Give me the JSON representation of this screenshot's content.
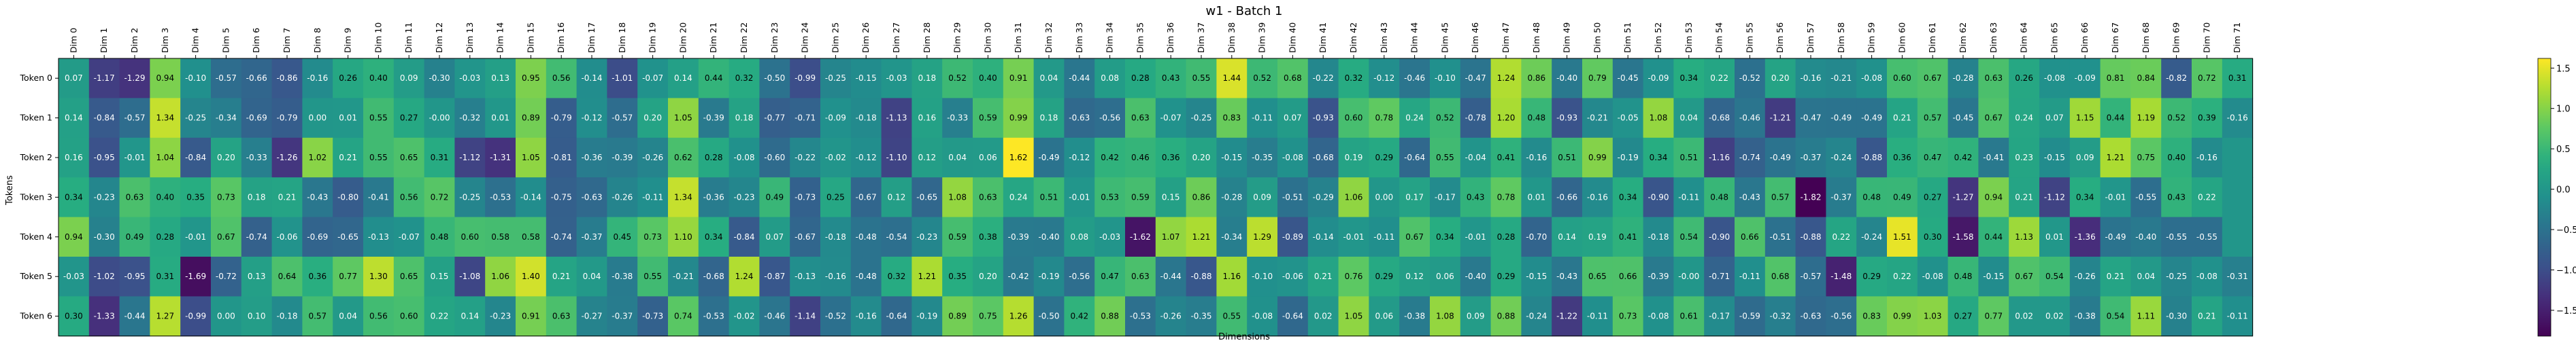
{
  "chart_data": {
    "type": "heatmap",
    "title": "w1 - Batch 1",
    "xlabel": "Dimensions",
    "ylabel": "Tokens",
    "rows": [
      "Token 0",
      "Token 1",
      "Token 2",
      "Token 3",
      "Token 4",
      "Token 5",
      "Token 6"
    ],
    "columns": [
      "Dim 0",
      "Dim 1",
      "Dim 2",
      "Dim 3",
      "Dim 4",
      "Dim 5",
      "Dim 6",
      "Dim 7",
      "Dim 8",
      "Dim 9",
      "Dim 10",
      "Dim 11",
      "Dim 12",
      "Dim 13",
      "Dim 14",
      "Dim 15",
      "Dim 16",
      "Dim 17",
      "Dim 18",
      "Dim 19",
      "Dim 20",
      "Dim 21",
      "Dim 22",
      "Dim 23",
      "Dim 24",
      "Dim 25",
      "Dim 26",
      "Dim 27",
      "Dim 28",
      "Dim 29",
      "Dim 30",
      "Dim 31",
      "Dim 32",
      "Dim 33",
      "Dim 34",
      "Dim 35",
      "Dim 36",
      "Dim 37",
      "Dim 38",
      "Dim 39",
      "Dim 40",
      "Dim 41",
      "Dim 42",
      "Dim 43",
      "Dim 44",
      "Dim 45",
      "Dim 46",
      "Dim 47",
      "Dim 48",
      "Dim 49",
      "Dim 50",
      "Dim 51",
      "Dim 52",
      "Dim 53",
      "Dim 54",
      "Dim 55",
      "Dim 56",
      "Dim 57",
      "Dim 58",
      "Dim 59",
      "Dim 60",
      "Dim 61",
      "Dim 62",
      "Dim 63",
      "Dim 64",
      "Dim 65",
      "Dim 66",
      "Dim 67",
      "Dim 68",
      "Dim 69",
      "Dim 70",
      "Dim 71"
    ],
    "values": [
      [
        0.07,
        -1.17,
        -1.29,
        0.94,
        -0.1,
        -0.57,
        -0.66,
        -0.86,
        -0.16,
        0.26,
        0.4,
        0.09,
        -0.3,
        -0.03,
        0.13,
        0.95,
        0.56,
        -0.14,
        -1.01,
        -0.07,
        0.14,
        0.44,
        0.32,
        -0.5,
        -0.99,
        -0.25,
        -0.15,
        -0.03,
        0.18,
        0.52,
        0.4,
        0.91,
        0.04,
        -0.44,
        0.08,
        0.28,
        0.43,
        0.55,
        1.44,
        0.52,
        0.68,
        -0.22,
        0.32,
        -0.12,
        -0.46,
        -0.1,
        -0.47,
        1.24,
        0.86,
        -0.4,
        0.79,
        -0.45,
        -0.09,
        0.34,
        0.22,
        -0.52,
        0.2,
        -0.16,
        -0.21,
        -0.08,
        0.6,
        0.67,
        -0.28,
        0.63,
        0.26,
        -0.08,
        -0.09,
        0.81,
        0.84,
        -0.82,
        0.72,
        0.31
      ],
      [
        0.14,
        -0.84,
        -0.57,
        1.34,
        -0.25,
        -0.34,
        -0.69,
        -0.79,
        0.0,
        0.01,
        0.55,
        0.27,
        -0.0,
        -0.32,
        0.01,
        0.89,
        -0.79,
        -0.12,
        -0.57,
        0.2,
        1.05,
        -0.39,
        0.18,
        -0.77,
        -0.71,
        -0.09,
        -0.18,
        -1.13,
        0.16,
        -0.33,
        0.59,
        0.99,
        0.18,
        -0.63,
        -0.56,
        0.63,
        -0.07,
        -0.25,
        0.83,
        -0.11,
        0.07,
        -0.93,
        0.6,
        0.78,
        0.24,
        0.52,
        -0.78,
        1.2,
        0.48,
        -0.93,
        -0.21,
        -0.05,
        1.08,
        0.04,
        -0.68,
        -0.46,
        -1.21,
        -0.47,
        -0.49,
        -0.49,
        0.21,
        0.57,
        -0.45,
        0.67,
        0.24,
        0.07,
        1.15,
        0.44,
        1.19,
        0.52,
        0.39,
        -0.16
      ],
      [
        0.16,
        -0.95,
        -0.01,
        1.04,
        -0.84,
        0.2,
        -0.33,
        -1.26,
        1.02,
        0.21,
        0.55,
        0.65,
        0.31,
        -1.12,
        -1.31,
        1.05,
        -0.81,
        -0.36,
        -0.39,
        -0.26,
        0.62,
        0.28,
        -0.08,
        -0.6,
        -0.22,
        -0.02,
        -0.12,
        -1.1,
        0.12,
        0.04,
        0.06,
        1.62,
        -0.49,
        -0.12,
        0.42,
        0.46,
        0.36,
        0.2,
        -0.15,
        -0.35,
        -0.08,
        -0.68,
        0.19,
        0.29,
        -0.64,
        0.55,
        -0.04,
        0.41,
        -0.16,
        0.51,
        0.99,
        -0.19,
        0.34,
        0.51,
        -1.16,
        -0.74,
        -0.49,
        -0.37,
        -0.24,
        -0.88,
        0.36,
        0.47,
        0.42,
        -0.41,
        0.23,
        -0.15,
        0.09,
        1.21,
        0.75,
        0.4,
        -0.16,
        0.0
      ],
      [
        0.34,
        -0.23,
        0.63,
        0.4,
        0.35,
        0.73,
        0.18,
        0.21,
        -0.43,
        -0.8,
        -0.41,
        0.56,
        0.72,
        -0.25,
        -0.53,
        -0.14,
        -0.75,
        -0.63,
        -0.26,
        -0.11,
        1.34,
        -0.36,
        -0.23,
        0.49,
        -0.73,
        0.25,
        -0.67,
        0.12,
        -0.65,
        1.08,
        0.63,
        0.24,
        0.51,
        -0.01,
        0.53,
        0.59,
        0.15,
        0.86,
        -0.28,
        0.09,
        -0.51,
        -0.29,
        1.06,
        0.0,
        0.17,
        -0.17,
        0.43,
        0.78,
        0.01,
        -0.66,
        -0.16,
        0.34,
        -0.9,
        -0.11,
        0.48,
        -0.43,
        0.57,
        -1.82,
        -0.37,
        0.48,
        0.49,
        0.27,
        -1.27,
        0.94,
        0.21,
        -1.12,
        0.34,
        -0.01,
        -0.55,
        0.43,
        0.22,
        0.0
      ],
      [
        0.94,
        -0.3,
        0.49,
        0.28,
        -0.01,
        0.67,
        -0.74,
        -0.06,
        -0.69,
        -0.65,
        -0.13,
        -0.07,
        0.48,
        0.6,
        0.58,
        0.58,
        -0.74,
        -0.37,
        0.45,
        0.73,
        1.1,
        0.34,
        -0.84,
        0.07,
        -0.67,
        -0.18,
        -0.48,
        -0.54,
        -0.23,
        0.59,
        0.38,
        -0.39,
        -0.4,
        0.08,
        -0.03,
        -1.62,
        1.07,
        1.21,
        -0.34,
        1.29,
        -0.89,
        -0.14,
        -0.01,
        -0.11,
        0.67,
        0.34,
        -0.01,
        0.28,
        -0.7,
        0.14,
        0.19,
        0.41,
        -0.18,
        0.54,
        -0.9,
        0.66,
        -0.51,
        -0.88,
        0.22,
        -0.24,
        1.51,
        0.3,
        -1.58,
        0.44,
        1.13,
        0.01,
        -1.36,
        -0.49,
        -0.4,
        -0.55,
        -0.55,
        0.0
      ],
      [
        -0.03,
        -1.02,
        -0.95,
        0.31,
        -1.69,
        -0.72,
        0.13,
        0.64,
        0.36,
        0.77,
        1.3,
        0.65,
        0.15,
        -1.08,
        1.06,
        1.4,
        0.21,
        0.04,
        -0.38,
        0.55,
        -0.21,
        -0.68,
        1.24,
        -0.87,
        -0.13,
        -0.16,
        -0.48,
        0.32,
        1.21,
        0.35,
        0.2,
        -0.42,
        -0.19,
        -0.56,
        0.47,
        0.63,
        -0.44,
        -0.88,
        1.16,
        -0.1,
        -0.06,
        0.21,
        0.76,
        0.29,
        0.12,
        0.06,
        -0.4,
        0.29,
        -0.15,
        -0.43,
        0.65,
        0.66,
        -0.39,
        -0.0,
        -0.71,
        -0.11,
        0.68,
        -0.57,
        -1.48,
        0.29,
        0.22,
        -0.08,
        0.48,
        -0.15,
        0.67,
        0.54,
        -0.26,
        0.21,
        0.04,
        -0.25,
        -0.08,
        -0.31
      ],
      [
        0.3,
        -1.33,
        -0.44,
        1.27,
        -0.99,
        0.0,
        0.1,
        -0.18,
        0.57,
        0.04,
        0.56,
        0.6,
        0.22,
        0.14,
        -0.23,
        0.91,
        0.63,
        -0.27,
        -0.37,
        -0.73,
        0.74,
        -0.53,
        -0.02,
        -0.46,
        -1.14,
        -0.52,
        -0.16,
        -0.64,
        -0.19,
        0.89,
        0.75,
        1.26,
        -0.5,
        0.42,
        0.88,
        -0.53,
        -0.26,
        -0.35,
        0.55,
        -0.08,
        -0.64,
        0.02,
        1.05,
        0.06,
        -0.38,
        1.08,
        0.09,
        0.88,
        -0.24,
        -1.22,
        -0.11,
        0.73,
        -0.08,
        0.61,
        -0.17,
        -0.59,
        -0.32,
        -0.63,
        -0.56,
        0.83,
        0.99,
        1.03,
        0.27,
        0.77,
        0.02,
        0.02,
        -0.38,
        0.54,
        1.11,
        -0.3,
        0.21,
        -0.11
      ]
    ],
    "cell_labels": [
      [
        "0.07",
        "-1.17",
        "-1.29",
        "0.94",
        "-0.10",
        "-0.57",
        "-0.66",
        "-0.86",
        "-0.16",
        "0.26",
        "0.40",
        "0.09",
        "-0.30",
        "-0.03",
        "0.13",
        "0.95",
        "0.56",
        "-0.14",
        "-1.01",
        "-0.07",
        "0.14",
        "0.44",
        "0.32",
        "-0.50",
        "-0.99",
        "-0.25",
        "-0.15",
        "-0.03",
        "0.18",
        "0.52",
        "0.40",
        "0.91",
        "0.04",
        "-0.44",
        "0.08",
        "0.28",
        "0.43",
        "0.55",
        "1.44",
        "0.52",
        "0.68",
        "-0.22",
        "0.32",
        "-0.12",
        "-0.46",
        "-0.10",
        "-0.47",
        "1.24",
        "0.86",
        "-0.40",
        "0.79",
        "-0.45",
        "-0.09",
        "0.34",
        "0.22",
        "-0.52",
        "0.20",
        "-0.16",
        "-0.21",
        "-0.08",
        "0.60",
        "0.67",
        "-0.28",
        "0.63",
        "0.26",
        "-0.08",
        "-0.09",
        "0.81",
        "0.84",
        "-0.82",
        "0.72",
        "0.31"
      ],
      [
        "0.14",
        "-0.84",
        "-0.57",
        "1.34",
        "-0.25",
        "-0.34",
        "-0.69",
        "-0.79",
        "0.00",
        "0.01",
        "0.55",
        "0.27",
        "-0.00",
        "-0.32",
        "0.01",
        "0.89",
        "-0.79",
        "-0.12",
        "-0.57",
        "0.20",
        "1.05",
        "-0.39",
        "0.18",
        "-0.77",
        "-0.71",
        "-0.09",
        "-0.18",
        "-1.13",
        "0.16",
        "-0.33",
        "0.59",
        "0.99",
        "0.18",
        "-0.63",
        "-0.56",
        "0.63",
        "-0.07",
        "-0.25",
        "0.83",
        "-0.11",
        "0.07",
        "-0.93",
        "0.60",
        "0.78",
        "0.24",
        "0.52",
        "-0.78",
        "1.20",
        "0.48",
        "-0.93",
        "-0.21",
        "-0.05",
        "1.08",
        "0.04",
        "-0.68",
        "-0.46",
        "-1.21",
        "-0.47",
        "-0.49",
        "-0.49",
        "0.21",
        "0.57",
        "-0.45",
        "0.67",
        "0.24",
        "0.07",
        "1.15",
        "0.44",
        "1.19",
        "0.52",
        "0.39",
        "-0.16"
      ],
      [
        "0.16",
        "-0.95",
        "-0.01",
        "1.04",
        "-0.84",
        "0.20",
        "-0.33",
        "-1.26",
        "1.02",
        "0.21",
        "0.55",
        "0.65",
        "0.31",
        "-1.12",
        "-1.31",
        "1.05",
        "-0.81",
        "-0.36",
        "-0.39",
        "-0.26",
        "0.62",
        "0.28",
        "-0.08",
        "-0.60",
        "-0.22",
        "-0.02",
        "-0.12",
        "-1.10",
        "0.12",
        "0.04",
        "0.06",
        "1.62",
        "-0.49",
        "-0.12",
        "0.42",
        "0.46",
        "0.36",
        "0.20",
        "-0.15",
        "-0.35",
        "-0.08",
        "-0.68",
        "0.19",
        "0.29",
        "-0.64",
        "0.55",
        "-0.04",
        "0.41",
        "-0.16",
        "0.51",
        "0.99",
        "-0.19",
        "0.34",
        "0.51",
        "-1.16",
        "-0.74",
        "-0.49",
        "-0.37",
        "-0.24",
        "-0.88",
        "0.36",
        "0.47",
        "0.42",
        "-0.41",
        "0.23",
        "-0.15",
        "0.09",
        "1.21",
        "0.75",
        "0.40",
        "-0.16",
        ""
      ],
      [
        "0.34",
        "-0.23",
        "0.63",
        "0.40",
        "0.35",
        "0.73",
        "0.18",
        "0.21",
        "-0.43",
        "-0.80",
        "-0.41",
        "0.56",
        "0.72",
        "-0.25",
        "-0.53",
        "-0.14",
        "-0.75",
        "-0.63",
        "-0.26",
        "-0.11",
        "1.34",
        "-0.36",
        "-0.23",
        "0.49",
        "-0.73",
        "0.25",
        "-0.67",
        "0.12",
        "-0.65",
        "1.08",
        "0.63",
        "0.24",
        "0.51",
        "-0.01",
        "0.53",
        "0.59",
        "0.15",
        "0.86",
        "-0.28",
        "0.09",
        "-0.51",
        "-0.29",
        "1.06",
        "0.00",
        "0.17",
        "-0.17",
        "0.43",
        "0.78",
        "0.01",
        "-0.66",
        "-0.16",
        "0.34",
        "-0.90",
        "-0.11",
        "0.48",
        "-0.43",
        "0.57",
        "-1.82",
        "-0.37",
        "0.48",
        "0.49",
        "0.27",
        "-1.27",
        "0.94",
        "0.21",
        "-1.12",
        "0.34",
        "-0.01",
        "-0.55",
        "0.43",
        "0.22",
        ""
      ],
      [
        "0.94",
        "-0.30",
        "0.49",
        "0.28",
        "-0.01",
        "0.67",
        "-0.74",
        "-0.06",
        "-0.69",
        "-0.65",
        "-0.13",
        "-0.07",
        "0.48",
        "0.60",
        "0.58",
        "0.58",
        "-0.74",
        "-0.37",
        "0.45",
        "0.73",
        "1.10",
        "0.34",
        "-0.84",
        "0.07",
        "-0.67",
        "-0.18",
        "-0.48",
        "-0.54",
        "-0.23",
        "0.59",
        "0.38",
        "-0.39",
        "-0.40",
        "0.08",
        "-0.03",
        "-1.62",
        "1.07",
        "1.21",
        "-0.34",
        "1.29",
        "-0.89",
        "-0.14",
        "-0.01",
        "-0.11",
        "0.67",
        "0.34",
        "-0.01",
        "0.28",
        "-0.70",
        "0.14",
        "0.19",
        "0.41",
        "-0.18",
        "0.54",
        "-0.90",
        "0.66",
        "-0.51",
        "-0.88",
        "0.22",
        "-0.24",
        "1.51",
        "0.30",
        "-1.58",
        "0.44",
        "1.13",
        "0.01",
        "-1.36",
        "-0.49",
        "-0.40",
        "-0.55",
        "-0.55",
        ""
      ],
      [
        "-0.03",
        "-1.02",
        "-0.95",
        "0.31",
        "-1.69",
        "-0.72",
        "0.13",
        "0.64",
        "0.36",
        "0.77",
        "1.30",
        "0.65",
        "0.15",
        "-1.08",
        "1.06",
        "1.40",
        "0.21",
        "0.04",
        "-0.38",
        "0.55",
        "-0.21",
        "-0.68",
        "1.24",
        "-0.87",
        "-0.13",
        "-0.16",
        "-0.48",
        "0.32",
        "1.21",
        "0.35",
        "0.20",
        "-0.42",
        "-0.19",
        "-0.56",
        "0.47",
        "0.63",
        "-0.44",
        "-0.88",
        "1.16",
        "-0.10",
        "-0.06",
        "0.21",
        "0.76",
        "0.29",
        "0.12",
        "0.06",
        "-0.40",
        "0.29",
        "-0.15",
        "-0.43",
        "0.65",
        "0.66",
        "-0.39",
        "-0.00",
        "-0.71",
        "-0.11",
        "0.68",
        "-0.57",
        "-1.48",
        "0.29",
        "0.22",
        "-0.08",
        "0.48",
        "-0.15",
        "0.67",
        "0.54",
        "-0.26",
        "0.21",
        "0.04",
        "-0.25",
        "-0.08",
        "-0.31"
      ],
      [
        "0.30",
        "-1.33",
        "-0.44",
        "1.27",
        "-0.99",
        "0.00",
        "0.10",
        "-0.18",
        "0.57",
        "0.04",
        "0.56",
        "0.60",
        "0.22",
        "0.14",
        "-0.23",
        "0.91",
        "0.63",
        "-0.27",
        "-0.37",
        "-0.73",
        "0.74",
        "-0.53",
        "-0.02",
        "-0.46",
        "-1.14",
        "-0.52",
        "-0.16",
        "-0.64",
        "-0.19",
        "0.89",
        "0.75",
        "1.26",
        "-0.50",
        "0.42",
        "0.88",
        "-0.53",
        "-0.26",
        "-0.35",
        "0.55",
        "-0.08",
        "-0.64",
        "0.02",
        "1.05",
        "0.06",
        "-0.38",
        "1.08",
        "0.09",
        "0.88",
        "-0.24",
        "-1.22",
        "-0.11",
        "0.73",
        "-0.08",
        "0.61",
        "-0.17",
        "-0.59",
        "-0.32",
        "-0.63",
        "-0.56",
        "0.83",
        "0.99",
        "1.03",
        "0.27",
        "0.77",
        "0.02",
        "0.02",
        "-0.38",
        "0.54",
        "1.11",
        "-0.30",
        "0.21",
        "-0.11"
      ]
    ],
    "colormap": "viridis",
    "vmin": -1.82,
    "vmax": 1.62,
    "colorbar_ticks": [
      "1.5",
      "1.0",
      "0.5",
      "0.0",
      "−0.5",
      "−1.0",
      "−1.5"
    ],
    "colorbar_tick_values": [
      1.5,
      1.0,
      0.5,
      0.0,
      -0.5,
      -1.0,
      -1.5
    ],
    "grid": false,
    "legend": "colorbar-right"
  }
}
